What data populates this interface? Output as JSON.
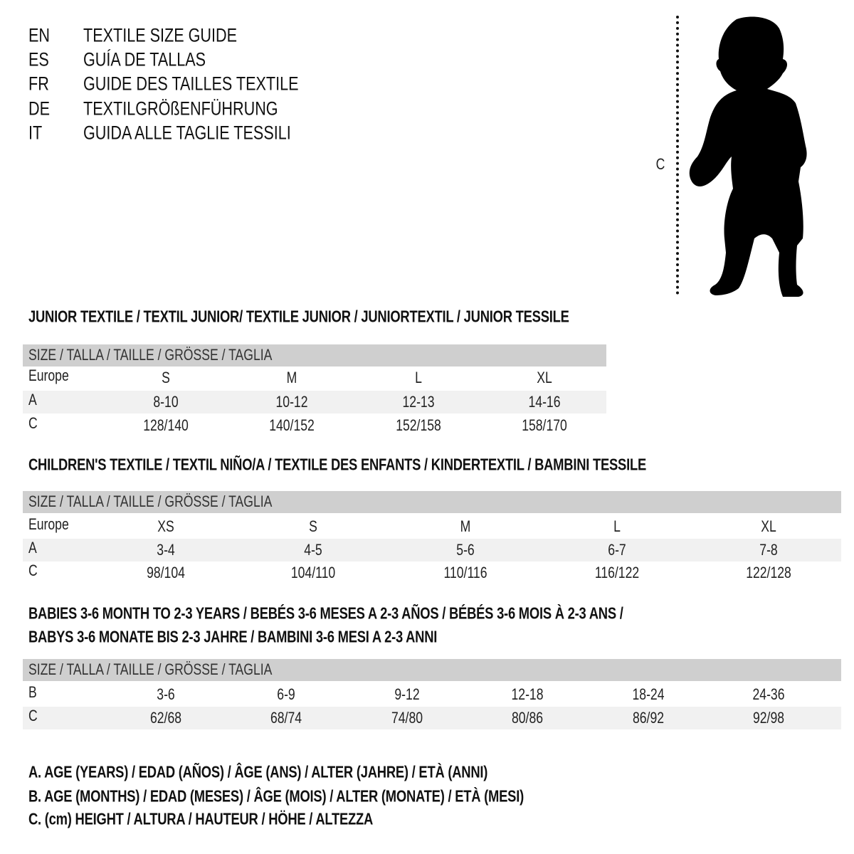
{
  "header": {
    "rows": [
      {
        "code": "EN",
        "text": "TEXTILE SIZE GUIDE"
      },
      {
        "code": "ES",
        "text": "GUÍA DE TALLAS"
      },
      {
        "code": "FR",
        "text": "GUIDE DES TAILLES TEXTILE"
      },
      {
        "code": "DE",
        "text": "TEXTILGRÖßENFÜHRUNG"
      },
      {
        "code": "IT",
        "text": "GUIDA ALLE TAGLIE TESSILI"
      }
    ]
  },
  "figure": {
    "label": "C",
    "icon": "child-silhouette-icon"
  },
  "tables": [
    {
      "title": [
        "JUNIOR TEXTILE / TEXTIL JUNIOR/ TEXTILE JUNIOR / JUNIORTEXTIL / JUNIOR TESSILE"
      ],
      "size_header": "SIZE / TALLA / TAILLE / GRÖSSE / TAGLIA",
      "rows": [
        {
          "label": "Europe",
          "values": [
            "S",
            "M",
            "L",
            "XL"
          ]
        },
        {
          "label": "A",
          "values": [
            "8-10",
            "10-12",
            "12-13",
            "14-16"
          ]
        },
        {
          "label": "C",
          "values": [
            "128/140",
            "140/152",
            "152/158",
            "158/170"
          ]
        }
      ]
    },
    {
      "title": [
        "CHILDREN'S TEXTILE / TEXTIL NIÑO/A / TEXTILE DES ENFANTS / KINDERTEXTIL / BAMBINI TESSILE"
      ],
      "size_header": "SIZE / TALLA / TAILLE / GRÖSSE / TAGLIA",
      "rows": [
        {
          "label": "Europe",
          "values": [
            "XS",
            "S",
            "M",
            "L",
            "XL"
          ]
        },
        {
          "label": "A",
          "values": [
            "3-4",
            "4-5",
            "5-6",
            "6-7",
            "7-8"
          ]
        },
        {
          "label": "C",
          "values": [
            "98/104",
            "104/110",
            "110/116",
            "116/122",
            "122/128"
          ]
        }
      ]
    },
    {
      "title": [
        "BABIES 3-6 MONTH TO 2-3 YEARS / BEBÉS 3-6 MESES A 2-3 AÑOS / BÉBÉS 3-6 MOIS À 2-3 ANS /",
        "BABYS 3-6 MONATE BIS 2-3 JAHRE / BAMBINI 3-6 MESI A 2-3 ANNI"
      ],
      "size_header": "SIZE / TALLA / TAILLE / GRÖSSE / TAGLIA",
      "rows": [
        {
          "label": "B",
          "values": [
            "3-6",
            "6-9",
            "9-12",
            "12-18",
            "18-24",
            "24-36"
          ]
        },
        {
          "label": "C",
          "values": [
            "62/68",
            "68/74",
            "74/80",
            "80/86",
            "86/92",
            "92/98"
          ]
        }
      ]
    }
  ],
  "legend": [
    "A. AGE (YEARS) / EDAD (AÑOS) / ÂGE (ANS) / ALTER (JAHRE) / ETÀ (ANNI)",
    "B. AGE (MONTHS) / EDAD (MESES) / ÂGE (MOIS) / ALTER (MONATE) / ETÀ (MESI)",
    "C. (cm) HEIGHT / ALTURA / HAUTEUR / HÖHE / ALTEZZA"
  ]
}
